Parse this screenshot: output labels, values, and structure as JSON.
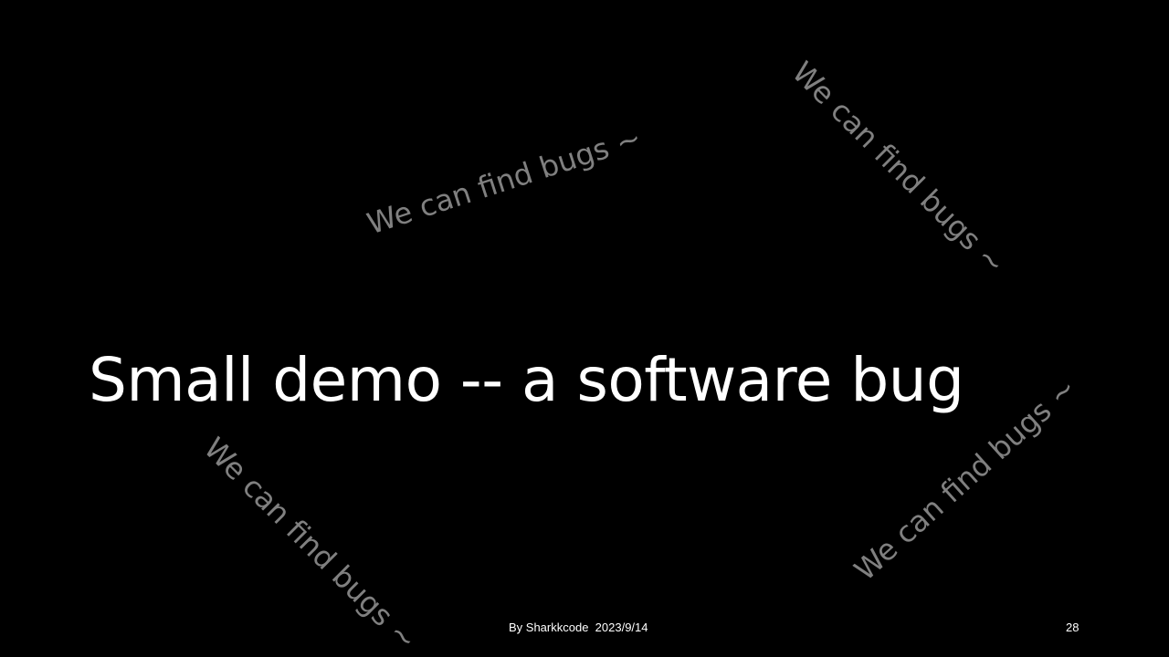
{
  "slide": {
    "title": "Small demo -- a software bug",
    "watermarks": [
      "We can find bugs ~",
      "We can find bugs ~",
      "We can find bugs ~",
      "We can find bugs ~"
    ],
    "footer": "By Sharkkcode  2023/9/14",
    "page_number": "28"
  },
  "colors": {
    "background": "#000000",
    "title_text": "#ffffff",
    "watermark_text": "#808080",
    "footer_text": "#ffffff"
  }
}
